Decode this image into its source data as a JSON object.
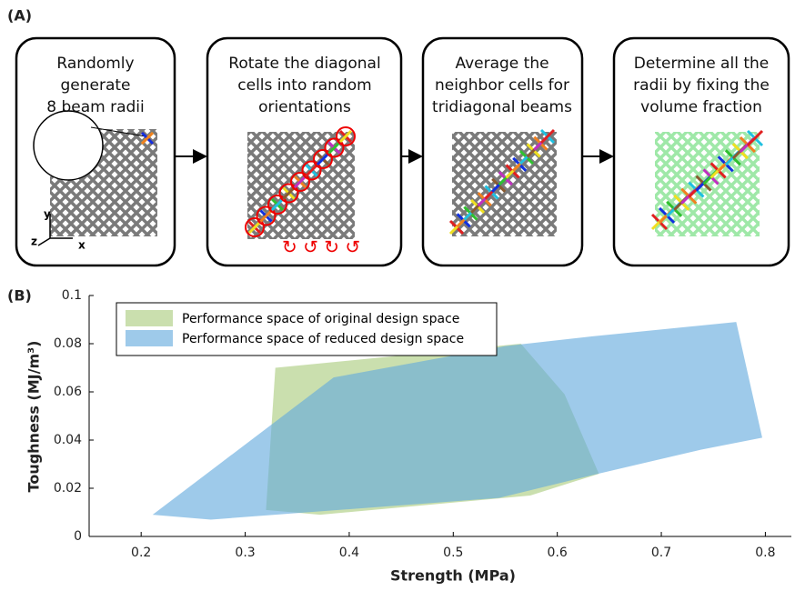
{
  "panel_a": {
    "label": "(A)",
    "steps": [
      {
        "lines": [
          "Randomly",
          "generate",
          "8 beam radii"
        ],
        "axes": [
          "y",
          "z",
          "x"
        ]
      },
      {
        "lines": [
          "Rotate the diagonal",
          "cells into random",
          "orientations"
        ]
      },
      {
        "lines": [
          "Average the",
          "neighbor cells for",
          "tridiagonal beams"
        ]
      },
      {
        "lines": [
          "Determine all the",
          "radii by fixing the",
          "volume fraction"
        ]
      }
    ]
  },
  "chart_data": {
    "type": "polygon",
    "label": "(B)",
    "x_label": "Strength (MPa)",
    "y_label": "Toughness (MJ/m³)",
    "xlim": [
      0.15,
      0.825
    ],
    "ylim": [
      0,
      0.1
    ],
    "xticks": [
      0.2,
      0.3,
      0.4,
      0.5,
      0.6,
      0.7,
      0.8
    ],
    "yticks": [
      0,
      0.02,
      0.04,
      0.06,
      0.08,
      0.1
    ],
    "legend": "upper left",
    "series": [
      {
        "name": "Performance space of original design space",
        "color": "#a9cc7d",
        "x": [
          0.329,
          0.565,
          0.607,
          0.64,
          0.574,
          0.372,
          0.32
        ],
        "values": [
          0.07,
          0.08,
          0.059,
          0.026,
          0.017,
          0.009,
          0.011
        ]
      },
      {
        "name": "Performance space of reduced design space",
        "color": "#62a9dd",
        "x": [
          0.211,
          0.267,
          0.544,
          0.639,
          0.738,
          0.797,
          0.772,
          0.633,
          0.55,
          0.385
        ],
        "values": [
          0.009,
          0.007,
          0.016,
          0.026,
          0.036,
          0.041,
          0.089,
          0.083,
          0.079,
          0.066
        ]
      }
    ]
  }
}
